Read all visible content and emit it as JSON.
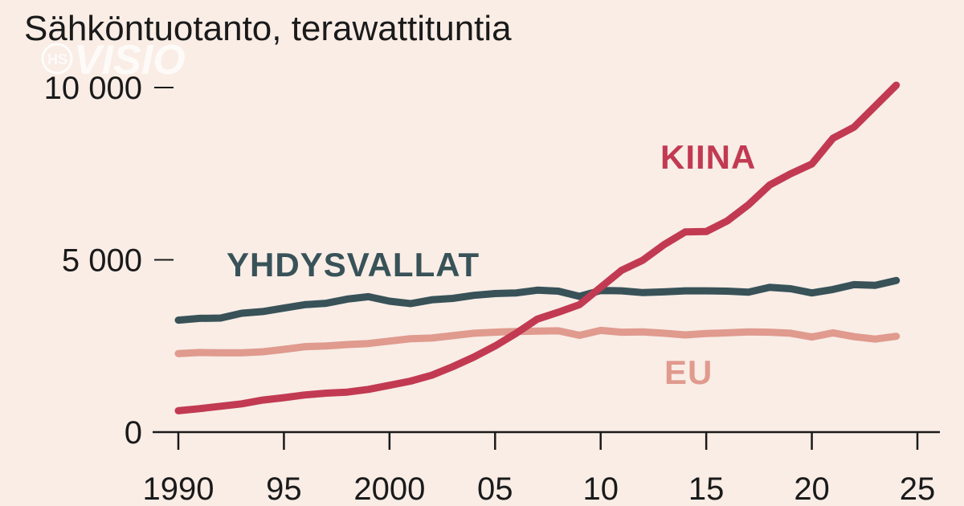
{
  "chart_data": {
    "type": "line",
    "title": "Sähköntuotanto, terawattituntia",
    "watermark": "HS VISIO",
    "xlim": [
      1990,
      2025
    ],
    "ylim": [
      0,
      10600
    ],
    "x_ticks": [
      {
        "value": 1990,
        "label": "1990"
      },
      {
        "value": 1995,
        "label": "95"
      },
      {
        "value": 2000,
        "label": "2000"
      },
      {
        "value": 2005,
        "label": "05"
      },
      {
        "value": 2010,
        "label": "10"
      },
      {
        "value": 2015,
        "label": "15"
      },
      {
        "value": 2020,
        "label": "20"
      },
      {
        "value": 2025,
        "label": "25"
      }
    ],
    "y_ticks": [
      {
        "value": 0,
        "label": "0"
      },
      {
        "value": 5000,
        "label": "5 000"
      },
      {
        "value": 10000,
        "label": "10 000"
      }
    ],
    "grid": false,
    "x": [
      1990,
      1991,
      1992,
      1993,
      1994,
      1995,
      1996,
      1997,
      1998,
      1999,
      2000,
      2001,
      2002,
      2003,
      2004,
      2005,
      2006,
      2007,
      2008,
      2009,
      2010,
      2011,
      2012,
      2013,
      2014,
      2015,
      2016,
      2017,
      2018,
      2019,
      2020,
      2021,
      2022,
      2023,
      2024
    ],
    "series": [
      {
        "name": "YHDYSVALLAT",
        "color": "#385258",
        "values": [
          3250,
          3300,
          3310,
          3450,
          3500,
          3600,
          3700,
          3740,
          3860,
          3930,
          3800,
          3730,
          3840,
          3880,
          3970,
          4020,
          4040,
          4120,
          4090,
          3940,
          4110,
          4100,
          4050,
          4070,
          4100,
          4100,
          4090,
          4060,
          4200,
          4160,
          4040,
          4140,
          4280,
          4260,
          4400
        ]
      },
      {
        "name": "EU",
        "color": "#e09a8e",
        "values": [
          2280,
          2310,
          2300,
          2300,
          2330,
          2400,
          2480,
          2500,
          2540,
          2570,
          2640,
          2710,
          2730,
          2800,
          2870,
          2900,
          2920,
          2930,
          2940,
          2810,
          2950,
          2900,
          2910,
          2870,
          2820,
          2860,
          2880,
          2910,
          2900,
          2870,
          2760,
          2880,
          2770,
          2700,
          2780
        ]
      },
      {
        "name": "KIINA",
        "color": "#c23a52",
        "values": [
          620,
          680,
          750,
          820,
          930,
          1000,
          1080,
          1130,
          1160,
          1240,
          1360,
          1480,
          1650,
          1900,
          2180,
          2500,
          2870,
          3280,
          3480,
          3700,
          4200,
          4700,
          4990,
          5440,
          5810,
          5820,
          6130,
          6600,
          7170,
          7500,
          7780,
          8530,
          8850,
          9460,
          10070
        ]
      }
    ],
    "label_positions": {
      "YHDYSVALLAT": "above line, left",
      "KIINA": "upper right, left of line",
      "EU": "below line, right"
    }
  }
}
